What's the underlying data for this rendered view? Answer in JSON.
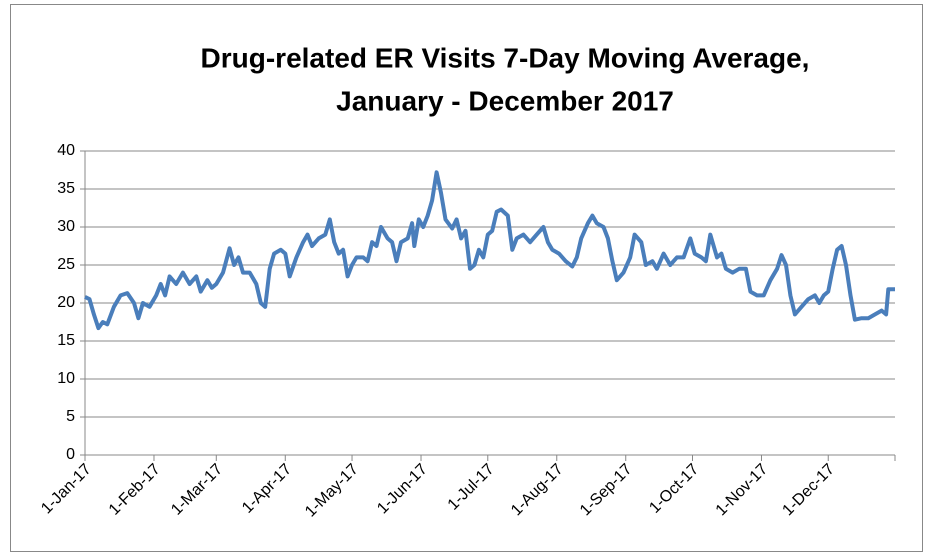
{
  "chart_data": {
    "type": "line",
    "title": [
      "Drug-related ER Visits 7-Day Moving Average,",
      "January - December 2017"
    ],
    "x": [
      "2017-01-01",
      "2017-01-03",
      "2017-01-05",
      "2017-01-07",
      "2017-01-09",
      "2017-01-11",
      "2017-01-14",
      "2017-01-17",
      "2017-01-20",
      "2017-01-23",
      "2017-01-25",
      "2017-01-27",
      "2017-01-30",
      "2017-02-02",
      "2017-02-04",
      "2017-02-06",
      "2017-02-08",
      "2017-02-11",
      "2017-02-14",
      "2017-02-17",
      "2017-02-20",
      "2017-02-22",
      "2017-02-25",
      "2017-02-27",
      "2017-03-01",
      "2017-03-04",
      "2017-03-07",
      "2017-03-09",
      "2017-03-11",
      "2017-03-13",
      "2017-03-16",
      "2017-03-19",
      "2017-03-21",
      "2017-03-23",
      "2017-03-25",
      "2017-03-27",
      "2017-03-30",
      "2017-04-01",
      "2017-04-03",
      "2017-04-06",
      "2017-04-09",
      "2017-04-11",
      "2017-04-13",
      "2017-04-16",
      "2017-04-19",
      "2017-04-21",
      "2017-04-23",
      "2017-04-25",
      "2017-04-27",
      "2017-04-29",
      "2017-05-01",
      "2017-05-03",
      "2017-05-06",
      "2017-05-08",
      "2017-05-10",
      "2017-05-12",
      "2017-05-14",
      "2017-05-17",
      "2017-05-19",
      "2017-05-21",
      "2017-05-23",
      "2017-05-26",
      "2017-05-28",
      "2017-05-29",
      "2017-05-31",
      "2017-06-02",
      "2017-06-04",
      "2017-06-06",
      "2017-06-08",
      "2017-06-10",
      "2017-06-12",
      "2017-06-15",
      "2017-06-17",
      "2017-06-19",
      "2017-06-21",
      "2017-06-23",
      "2017-06-25",
      "2017-06-27",
      "2017-06-29",
      "2017-07-01",
      "2017-07-03",
      "2017-07-05",
      "2017-07-07",
      "2017-07-10",
      "2017-07-12",
      "2017-07-14",
      "2017-07-17",
      "2017-07-20",
      "2017-07-23",
      "2017-07-26",
      "2017-07-28",
      "2017-07-30",
      "2017-08-02",
      "2017-08-05",
      "2017-08-08",
      "2017-08-10",
      "2017-08-12",
      "2017-08-15",
      "2017-08-17",
      "2017-08-19",
      "2017-08-22",
      "2017-08-24",
      "2017-08-26",
      "2017-08-28",
      "2017-08-31",
      "2017-09-03",
      "2017-09-05",
      "2017-09-08",
      "2017-09-10",
      "2017-09-13",
      "2017-09-15",
      "2017-09-18",
      "2017-09-21",
      "2017-09-24",
      "2017-09-27",
      "2017-09-30",
      "2017-10-02",
      "2017-10-05",
      "2017-10-07",
      "2017-10-09",
      "2017-10-12",
      "2017-10-14",
      "2017-10-16",
      "2017-10-19",
      "2017-10-22",
      "2017-10-25",
      "2017-10-27",
      "2017-10-30",
      "2017-11-02",
      "2017-11-05",
      "2017-11-08",
      "2017-11-10",
      "2017-11-12",
      "2017-11-14",
      "2017-11-16",
      "2017-11-19",
      "2017-11-22",
      "2017-11-25",
      "2017-11-27",
      "2017-11-29",
      "2017-12-01",
      "2017-12-03",
      "2017-12-05",
      "2017-12-07",
      "2017-12-09",
      "2017-12-11",
      "2017-12-13",
      "2017-12-16",
      "2017-12-19",
      "2017-12-22",
      "2017-12-25",
      "2017-12-27",
      "2017-12-28",
      "2017-12-31"
    ],
    "series": [
      {
        "color": "#4a7ebb",
        "values": [
          20.8,
          20.5,
          18.5,
          16.7,
          17.5,
          17.2,
          19.5,
          21,
          21.3,
          20,
          18,
          20,
          19.5,
          21,
          22.5,
          21,
          23.5,
          22.5,
          24,
          22.5,
          23.5,
          21.5,
          23,
          22,
          22.5,
          24,
          27.2,
          25,
          26,
          24,
          24,
          22.5,
          20,
          19.5,
          24.5,
          26.5,
          27,
          26.5,
          23.5,
          26,
          28,
          29,
          27.5,
          28.5,
          29,
          31,
          28,
          26.5,
          27,
          23.5,
          25,
          26,
          26,
          25.5,
          28,
          27.5,
          30,
          28.5,
          28,
          25.5,
          28,
          28.5,
          30.5,
          27.5,
          31,
          30,
          31.5,
          33.5,
          37.2,
          34.5,
          31,
          29.8,
          31,
          28.5,
          29.5,
          24.5,
          25,
          27,
          26,
          29,
          29.5,
          32,
          32.3,
          31.5,
          27,
          28.5,
          29,
          28,
          29,
          30,
          28,
          27,
          26.5,
          25.5,
          24.8,
          26,
          28.5,
          30.5,
          31.5,
          30.5,
          30,
          28.5,
          25.5,
          23,
          24,
          26,
          29,
          28,
          25,
          25.5,
          24.5,
          26.5,
          25,
          26,
          26,
          28.5,
          26.5,
          26,
          25.5,
          29,
          26,
          26.5,
          24.5,
          24,
          24.5,
          24.5,
          21.5,
          21,
          21,
          23,
          24.5,
          26.3,
          25,
          21,
          18.5,
          19.5,
          20.5,
          21,
          20,
          21,
          21.5,
          24.5,
          27,
          27.5,
          25,
          21,
          17.8,
          18,
          18,
          18.5,
          19,
          18.5,
          21.8,
          21.8
        ]
      }
    ],
    "xlim": [
      "2017-01-01",
      "2017-12-31"
    ],
    "xticks": [
      {
        "value": "2017-01-01",
        "label": "1-Jan-17"
      },
      {
        "value": "2017-02-01",
        "label": "1-Feb-17"
      },
      {
        "value": "2017-03-01",
        "label": "1-Mar-17"
      },
      {
        "value": "2017-04-01",
        "label": "1-Apr-17"
      },
      {
        "value": "2017-05-01",
        "label": "1-May-17"
      },
      {
        "value": "2017-06-01",
        "label": "1-Jun-17"
      },
      {
        "value": "2017-07-01",
        "label": "1-Jul-17"
      },
      {
        "value": "2017-08-01",
        "label": "1-Aug-17"
      },
      {
        "value": "2017-09-01",
        "label": "1-Sep-17"
      },
      {
        "value": "2017-10-01",
        "label": "1-Oct-17"
      },
      {
        "value": "2017-11-01",
        "label": "1-Nov-17"
      },
      {
        "value": "2017-12-01",
        "label": "1-Dec-17"
      }
    ],
    "ylim": [
      0,
      40
    ],
    "yticks": [
      0,
      5,
      10,
      15,
      20,
      25,
      30,
      35,
      40
    ],
    "grid": true
  }
}
